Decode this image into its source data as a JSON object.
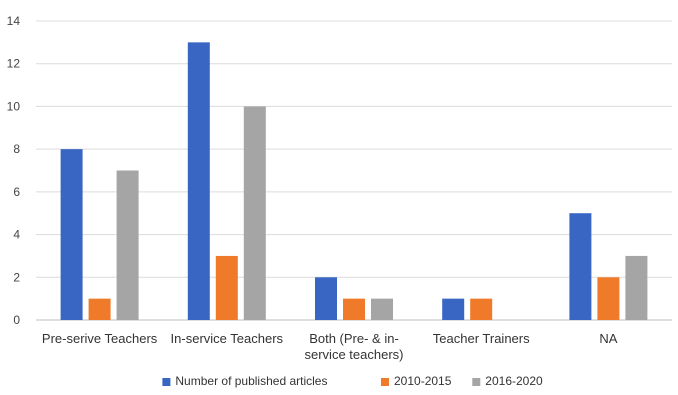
{
  "chart_data": {
    "type": "bar",
    "categories": [
      "Pre-serive Teachers",
      "In-service Teachers",
      "Both (Pre- & in-service teachers)",
      "Teacher Trainers",
      "NA"
    ],
    "category_label_lines": [
      [
        "Pre-serive Teachers"
      ],
      [
        "In-service Teachers"
      ],
      [
        "Both (Pre- & in-",
        "service teachers)"
      ],
      [
        "Teacher Trainers"
      ],
      [
        "NA"
      ]
    ],
    "series": [
      {
        "name": "Number of published articles",
        "color": "#3a66c3",
        "values": [
          8,
          13,
          2,
          1,
          5
        ]
      },
      {
        "name": "2010-2015",
        "color": "#ef7a2a",
        "values": [
          1,
          3,
          1,
          1,
          2
        ]
      },
      {
        "name": "2016-2020",
        "color": "#a5a5a5",
        "values": [
          7,
          10,
          1,
          0,
          3
        ]
      }
    ],
    "ylim": [
      0,
      14
    ],
    "yticks": [
      0,
      2,
      4,
      6,
      8,
      10,
      12,
      14
    ],
    "grid": true,
    "legend_position": "bottom",
    "title": "",
    "xlabel": "",
    "ylabel": ""
  }
}
